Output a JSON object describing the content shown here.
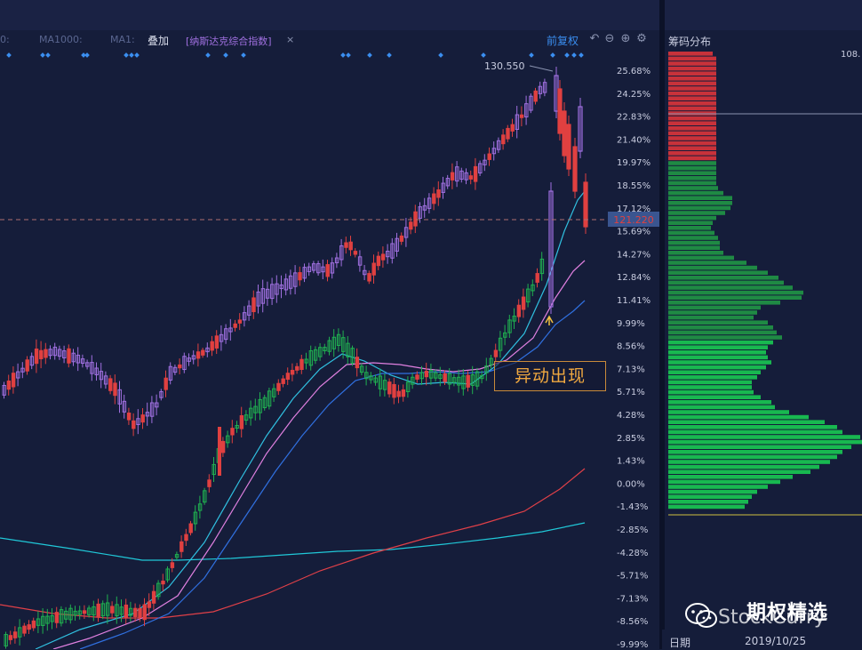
{
  "toolbar": {
    "ma_left_cut": "0:",
    "ma1000": "MA1000:",
    "ma1": "MA1:",
    "overlay": "叠加",
    "index_tag": "[纳斯达克综合指数]",
    "close": "×",
    "adjust": "前复权",
    "icons": [
      "undo-icon",
      "minus-circle-icon",
      "plus-circle-icon",
      "gear-icon"
    ]
  },
  "right_panel": {
    "title": "筹码分布",
    "top_value": "108.",
    "date_label": "日期",
    "date_value": "2019/10/25"
  },
  "annotation": "异动出现",
  "watermark": {
    "cn": "期权精选",
    "en": "StockCurry"
  },
  "chart_data": {
    "type": "candlestick",
    "y_axis_ticks": [
      "25.68%",
      "24.25%",
      "22.83%",
      "21.40%",
      "19.97%",
      "18.55%",
      "17.12%",
      "15.69%",
      "14.27%",
      "12.84%",
      "11.41%",
      "9.99%",
      "8.56%",
      "7.13%",
      "5.71%",
      "4.28%",
      "2.85%",
      "1.43%",
      "0.00%",
      "-1.43%",
      "-2.85%",
      "-4.28%",
      "-5.71%",
      "-7.13%",
      "-8.56%",
      "-9.99%"
    ],
    "ylim_percent": [
      -9.99,
      25.68
    ],
    "max_price_label": "130.550",
    "current_price_label": "121.220",
    "current_price_percent": 16.6,
    "colors": {
      "up_main": "#a070e0",
      "down": "#e04040",
      "up_overlay": "#20b050",
      "ma_cyan": "#30c0e0",
      "ma_pink": "#e080e0",
      "ma_blue": "#3070e0",
      "ma_long_red": "#e04048",
      "ma_long_cyan": "#20c8d8"
    },
    "chip_distribution": {
      "price_range_percent": [
        -8.6,
        25.4
      ],
      "red_bins": [
        50,
        54,
        54,
        54,
        54,
        54,
        54,
        54,
        54,
        54,
        54,
        54,
        54,
        54,
        54,
        54
      ],
      "green_bins": [
        54,
        54,
        54,
        54,
        54,
        56,
        62,
        72,
        72,
        70,
        64,
        54,
        50,
        48,
        52,
        56,
        58,
        58,
        62,
        74,
        88,
        100,
        112,
        124,
        130,
        140,
        152,
        150,
        126,
        104,
        100,
        96,
        112,
        118,
        122,
        128,
        118,
        112,
        110,
        112,
        116,
        110,
        104,
        100,
        94,
        94,
        96,
        104,
        116,
        120,
        136,
        158,
        176,
        190,
        196,
        216,
        220,
        206,
        196,
        190,
        182,
        170,
        160,
        140,
        126,
        112,
        100,
        94,
        90,
        86
      ]
    }
  }
}
